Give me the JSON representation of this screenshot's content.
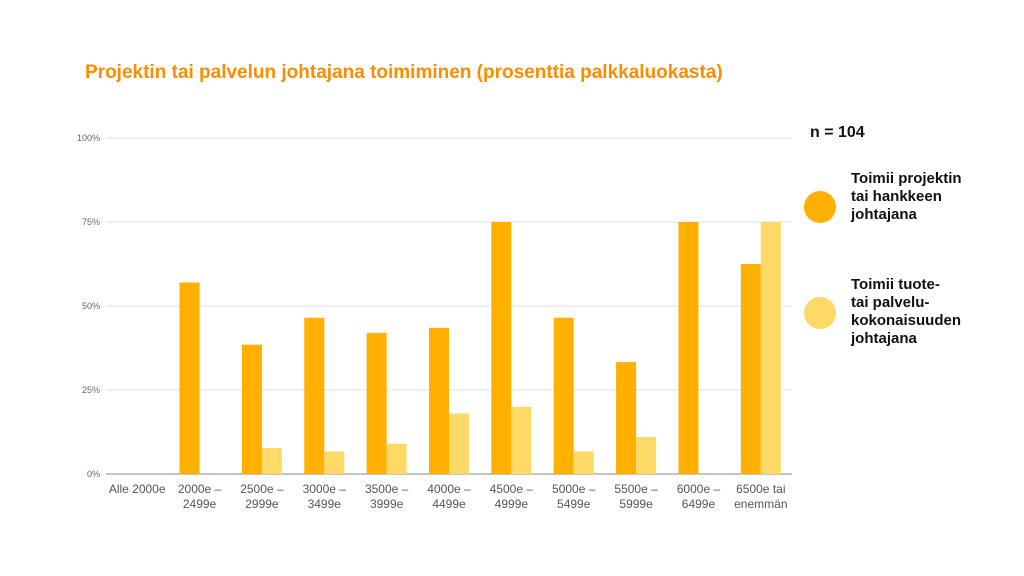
{
  "title": "Projektin tai palvelun johtajana toimiminen (prosenttia palkkaluokasta)",
  "n_label": "n = 104",
  "colors": {
    "title": "#ff8c00",
    "series1": "#ffb000",
    "series2": "#ffd966",
    "grid": "#e0e0e0",
    "axis": "#888888"
  },
  "chart_data": {
    "type": "bar",
    "categories": [
      "Alle 2000e",
      "2000e –\n2499e",
      "2500e –\n2999e",
      "3000e –\n3499e",
      "3500e –\n3999e",
      "4000e –\n4499e",
      "4500e –\n4999e",
      "5000e –\n5499e",
      "5500e –\n5999e",
      "6000e –\n6499e",
      "6500e tai\nenemmän"
    ],
    "series": [
      {
        "name": "Toimii projektin\ntai hankkeen\njohtajana",
        "color": "#ffb000",
        "values": [
          0,
          57,
          38.5,
          46.5,
          42,
          43.5,
          75,
          46.5,
          33.3,
          75,
          62.5
        ]
      },
      {
        "name": "Toimii tuote-\ntai palvelu-\nkokonaisuuden\njohtajana",
        "color": "#ffd966",
        "values": [
          0,
          0,
          7.7,
          6.7,
          9,
          18,
          20,
          6.7,
          11,
          0,
          75
        ]
      }
    ],
    "yticks": [
      "0%",
      "25%",
      "50%",
      "75%",
      "100%"
    ],
    "ylim": [
      0,
      100
    ],
    "grid": true,
    "legend_position": "right"
  }
}
